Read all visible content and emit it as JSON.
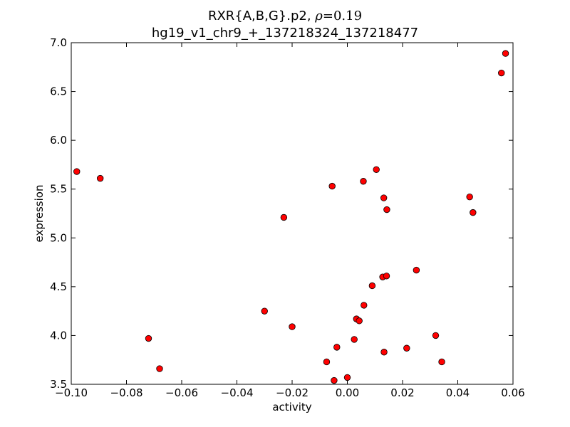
{
  "chart_data": {
    "type": "scatter",
    "title": {
      "line1_prefix": "RXR{A,B,G}.p2, ",
      "rho_symbol": "ρ",
      "rho_eq": "=0.19",
      "line2": "hg19_v1_chr9_+_137218324_137218477"
    },
    "xlabel": "activity",
    "ylabel": "expression",
    "xlim": [
      -0.1,
      0.06
    ],
    "ylim": [
      3.5,
      7.0
    ],
    "xticks": [
      -0.1,
      -0.08,
      -0.06,
      -0.04,
      -0.02,
      0.0,
      0.02,
      0.04,
      0.06
    ],
    "xtick_labels": [
      "−0.10",
      "−0.08",
      "−0.06",
      "−0.04",
      "−0.02",
      "0.00",
      "0.02",
      "0.04",
      "0.06"
    ],
    "yticks": [
      3.5,
      4.0,
      4.5,
      5.0,
      5.5,
      6.0,
      6.5,
      7.0
    ],
    "ytick_labels": [
      "3.5",
      "4.0",
      "4.5",
      "5.0",
      "5.5",
      "6.0",
      "6.5",
      "7.0"
    ],
    "grid": false,
    "marker_color": "#ff0000",
    "marker_edge": "#000000",
    "points": [
      {
        "x": -0.098,
        "y": 5.68
      },
      {
        "x": -0.0895,
        "y": 5.61
      },
      {
        "x": -0.072,
        "y": 3.97
      },
      {
        "x": -0.068,
        "y": 3.66
      },
      {
        "x": -0.03,
        "y": 4.25
      },
      {
        "x": -0.023,
        "y": 5.21
      },
      {
        "x": -0.02,
        "y": 4.09
      },
      {
        "x": -0.0075,
        "y": 3.73
      },
      {
        "x": -0.0055,
        "y": 5.53
      },
      {
        "x": -0.0048,
        "y": 3.54
      },
      {
        "x": -0.0038,
        "y": 3.88
      },
      {
        "x": 0.0,
        "y": 3.57
      },
      {
        "x": 0.0025,
        "y": 3.96
      },
      {
        "x": 0.0033,
        "y": 4.17
      },
      {
        "x": 0.0043,
        "y": 4.15
      },
      {
        "x": 0.0058,
        "y": 5.58
      },
      {
        "x": 0.006,
        "y": 4.31
      },
      {
        "x": 0.009,
        "y": 4.51
      },
      {
        "x": 0.0105,
        "y": 5.7
      },
      {
        "x": 0.0128,
        "y": 4.6
      },
      {
        "x": 0.0132,
        "y": 5.41
      },
      {
        "x": 0.0133,
        "y": 3.83
      },
      {
        "x": 0.0142,
        "y": 4.61
      },
      {
        "x": 0.0143,
        "y": 5.29
      },
      {
        "x": 0.0215,
        "y": 3.87
      },
      {
        "x": 0.025,
        "y": 4.67
      },
      {
        "x": 0.032,
        "y": 4.0
      },
      {
        "x": 0.0342,
        "y": 3.73
      },
      {
        "x": 0.0443,
        "y": 5.42
      },
      {
        "x": 0.0455,
        "y": 5.26
      },
      {
        "x": 0.0558,
        "y": 6.69
      },
      {
        "x": 0.0573,
        "y": 6.89
      }
    ]
  }
}
